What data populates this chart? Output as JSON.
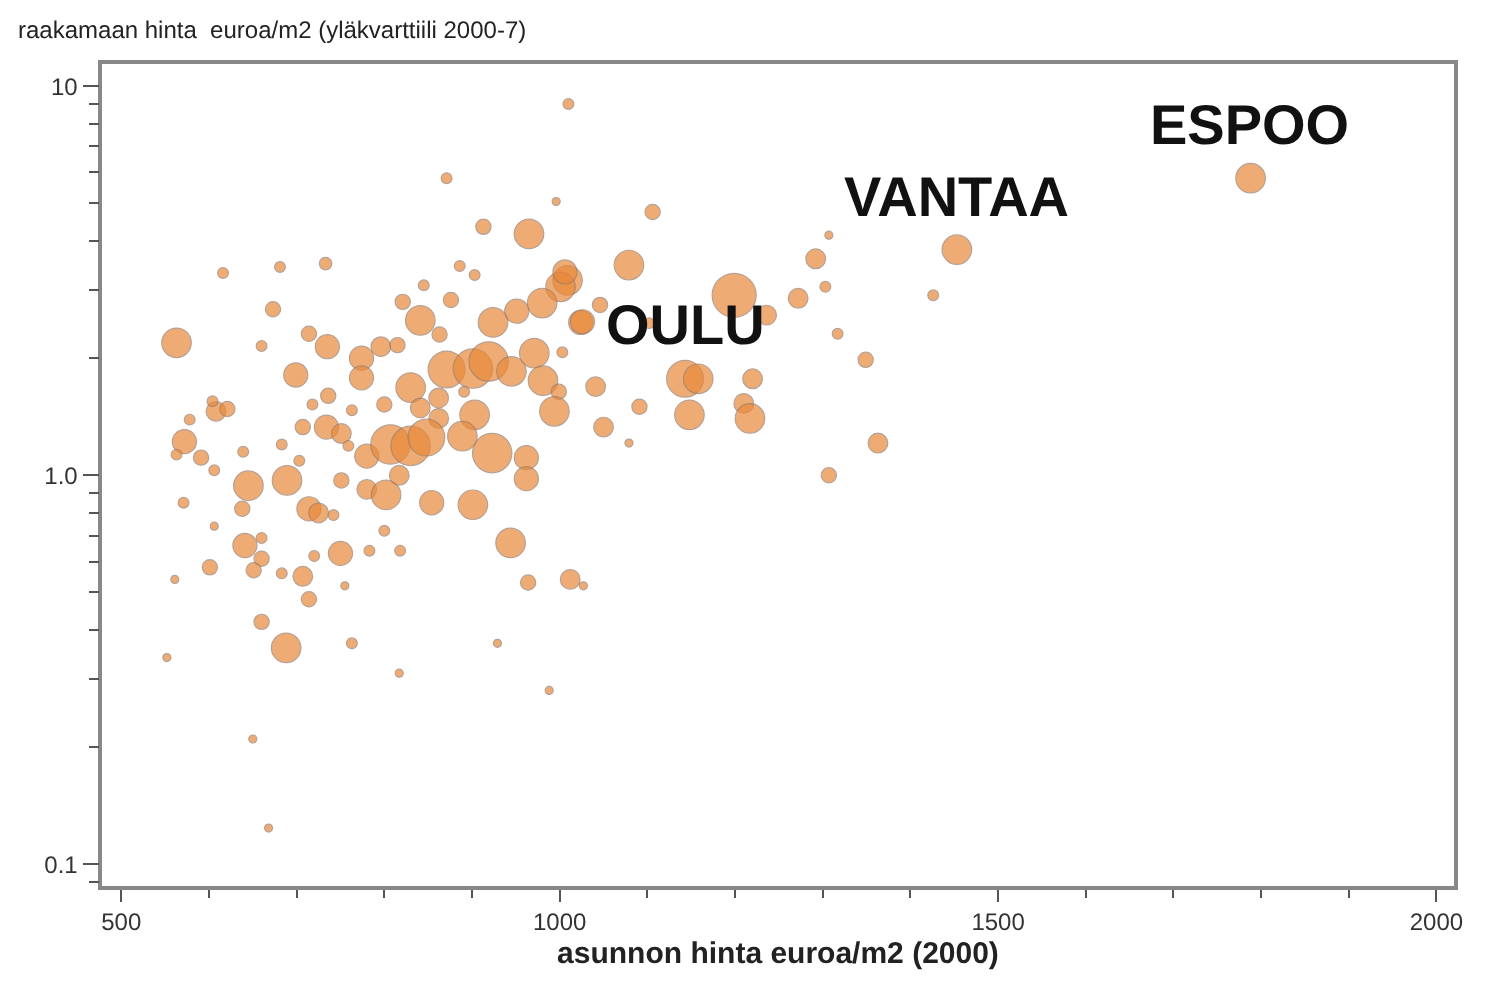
{
  "chart_data": {
    "type": "bubble",
    "ylabel": "raakamaan hinta  euroa/m2 (yläkvarttiili 2000-7)",
    "xlabel": "asunnon hinta euroa/m2 (2000)",
    "log": "y",
    "grid": false,
    "marker": "circle",
    "xlim": [
      478,
      2020
    ],
    "xticks": [
      500,
      1000,
      1500,
      2000
    ],
    "ylim": [
      0.088,
      11.4
    ],
    "yticks": [
      0.1,
      {
        "value": 1,
        "label": "1.0"
      },
      10
    ],
    "series": [
      {
        "color": "#e8893a",
        "x": [
          1788,
          1453,
          1426,
          563,
          965,
          913,
          616,
          681,
          733,
          886,
          903,
          1009,
          1001,
          980,
          951,
          924,
          1024,
          845,
          821,
          841,
          876,
          673,
          714,
          735,
          660,
          796,
          815,
          863,
          774,
          774,
          699,
          830,
          871,
          901,
          919,
          945,
          971,
          981,
          1003,
          999,
          994,
          903,
          891,
          862,
          841,
          862,
          800,
          736,
          718,
          763,
          734,
          751,
          707,
          608,
          621,
          604,
          578,
          572,
          563,
          591,
          606,
          639,
          683,
          703,
          759,
          780,
          807,
          830,
          848,
          889,
          923,
          962,
          962,
          645,
          689,
          751,
          780,
          802,
          817,
          854,
          901,
          714,
          725,
          571,
          638,
          742,
          800,
          606,
          641,
          660,
          660,
          651,
          601,
          683,
          707,
          714,
          720,
          750,
          783,
          818,
          561,
          755,
          944,
          964,
          1012,
          660,
          688,
          763,
          817,
          929,
          988,
          552,
          1027,
          1010,
          871,
          668,
          650,
          996,
          1106,
          1079,
          1199,
          1307,
          1292,
          1272,
          1303,
          1236,
          1102,
          1046,
          1026,
          1006,
          1317,
          1349,
          1143,
          1158,
          1220,
          1041,
          1091,
          1148,
          1210,
          1217,
          1050,
          1079,
          1363,
          1307
        ],
        "values": [
          5.8,
          3.8,
          2.9,
          2.19,
          4.17,
          4.35,
          3.31,
          3.43,
          3.5,
          3.45,
          3.27,
          3.17,
          3.05,
          2.77,
          2.64,
          2.47,
          2.47,
          3.08,
          2.79,
          2.5,
          2.82,
          2.67,
          2.31,
          2.14,
          2.15,
          2.14,
          2.16,
          2.3,
          2.0,
          1.78,
          1.81,
          1.68,
          1.87,
          1.88,
          1.96,
          1.85,
          2.06,
          1.75,
          2.07,
          1.64,
          1.46,
          1.43,
          1.64,
          1.58,
          1.49,
          1.4,
          1.52,
          1.6,
          1.52,
          1.47,
          1.33,
          1.28,
          1.33,
          1.46,
          1.48,
          1.55,
          1.39,
          1.22,
          1.13,
          1.11,
          1.03,
          1.15,
          1.2,
          1.09,
          1.19,
          1.12,
          1.2,
          1.19,
          1.25,
          1.26,
          1.14,
          1.11,
          0.98,
          0.94,
          0.97,
          0.97,
          0.92,
          0.89,
          1.0,
          0.85,
          0.84,
          0.82,
          0.8,
          0.85,
          0.82,
          0.79,
          0.72,
          0.74,
          0.66,
          0.69,
          0.61,
          0.57,
          0.58,
          0.56,
          0.55,
          0.48,
          0.62,
          0.63,
          0.64,
          0.64,
          0.54,
          0.52,
          0.67,
          0.53,
          0.54,
          0.42,
          0.36,
          0.37,
          0.31,
          0.37,
          0.28,
          0.34,
          0.52,
          9.0,
          5.8,
          0.124,
          0.21,
          5.05,
          4.75,
          3.47,
          2.9,
          4.14,
          3.6,
          2.85,
          3.05,
          2.58,
          2.46,
          2.74,
          2.48,
          3.33,
          2.31,
          1.98,
          1.77,
          1.77,
          1.77,
          1.69,
          1.5,
          1.43,
          1.53,
          1.4,
          1.33,
          1.21,
          1.21,
          1.0
        ],
        "sizes": [
          0.45,
          0.45,
          0.06,
          0.45,
          0.45,
          0.12,
          0.06,
          0.06,
          0.08,
          0.06,
          0.06,
          0.45,
          0.45,
          0.45,
          0.3,
          0.45,
          0.3,
          0.06,
          0.12,
          0.45,
          0.12,
          0.12,
          0.12,
          0.3,
          0.06,
          0.2,
          0.12,
          0.12,
          0.3,
          0.3,
          0.3,
          0.45,
          0.7,
          0.8,
          0.8,
          0.45,
          0.45,
          0.45,
          0.06,
          0.12,
          0.45,
          0.45,
          0.06,
          0.2,
          0.2,
          0.2,
          0.12,
          0.12,
          0.06,
          0.06,
          0.3,
          0.2,
          0.12,
          0.2,
          0.12,
          0.06,
          0.06,
          0.3,
          0.06,
          0.12,
          0.06,
          0.06,
          0.06,
          0.06,
          0.06,
          0.3,
          0.8,
          0.8,
          0.7,
          0.45,
          0.8,
          0.3,
          0.3,
          0.45,
          0.45,
          0.12,
          0.2,
          0.45,
          0.2,
          0.3,
          0.45,
          0.3,
          0.2,
          0.06,
          0.12,
          0.06,
          0.06,
          0.02,
          0.3,
          0.06,
          0.12,
          0.12,
          0.12,
          0.06,
          0.2,
          0.12,
          0.06,
          0.3,
          0.06,
          0.06,
          0.02,
          0.02,
          0.45,
          0.12,
          0.2,
          0.12,
          0.45,
          0.06,
          0.02,
          0.02,
          0.02,
          0.02,
          0.02,
          0.06,
          0.06,
          0.02,
          0.02,
          0.02,
          0.12,
          0.45,
          1,
          0.02,
          0.2,
          0.2,
          0.06,
          0.2,
          0.06,
          0.12,
          0.3,
          0.3,
          0.06,
          0.12,
          0.7,
          0.45,
          0.2,
          0.2,
          0.12,
          0.45,
          0.2,
          0.45,
          0.2,
          0.02,
          0.2,
          0.12
        ]
      }
    ],
    "annotations": [
      {
        "text": "ESPOO",
        "x": 1788,
        "y": 5.8
      },
      {
        "text": "VANTAA",
        "x": 1453,
        "y": 3.8
      },
      {
        "text": "OULU",
        "x": 1143,
        "y": 1.77
      }
    ]
  }
}
